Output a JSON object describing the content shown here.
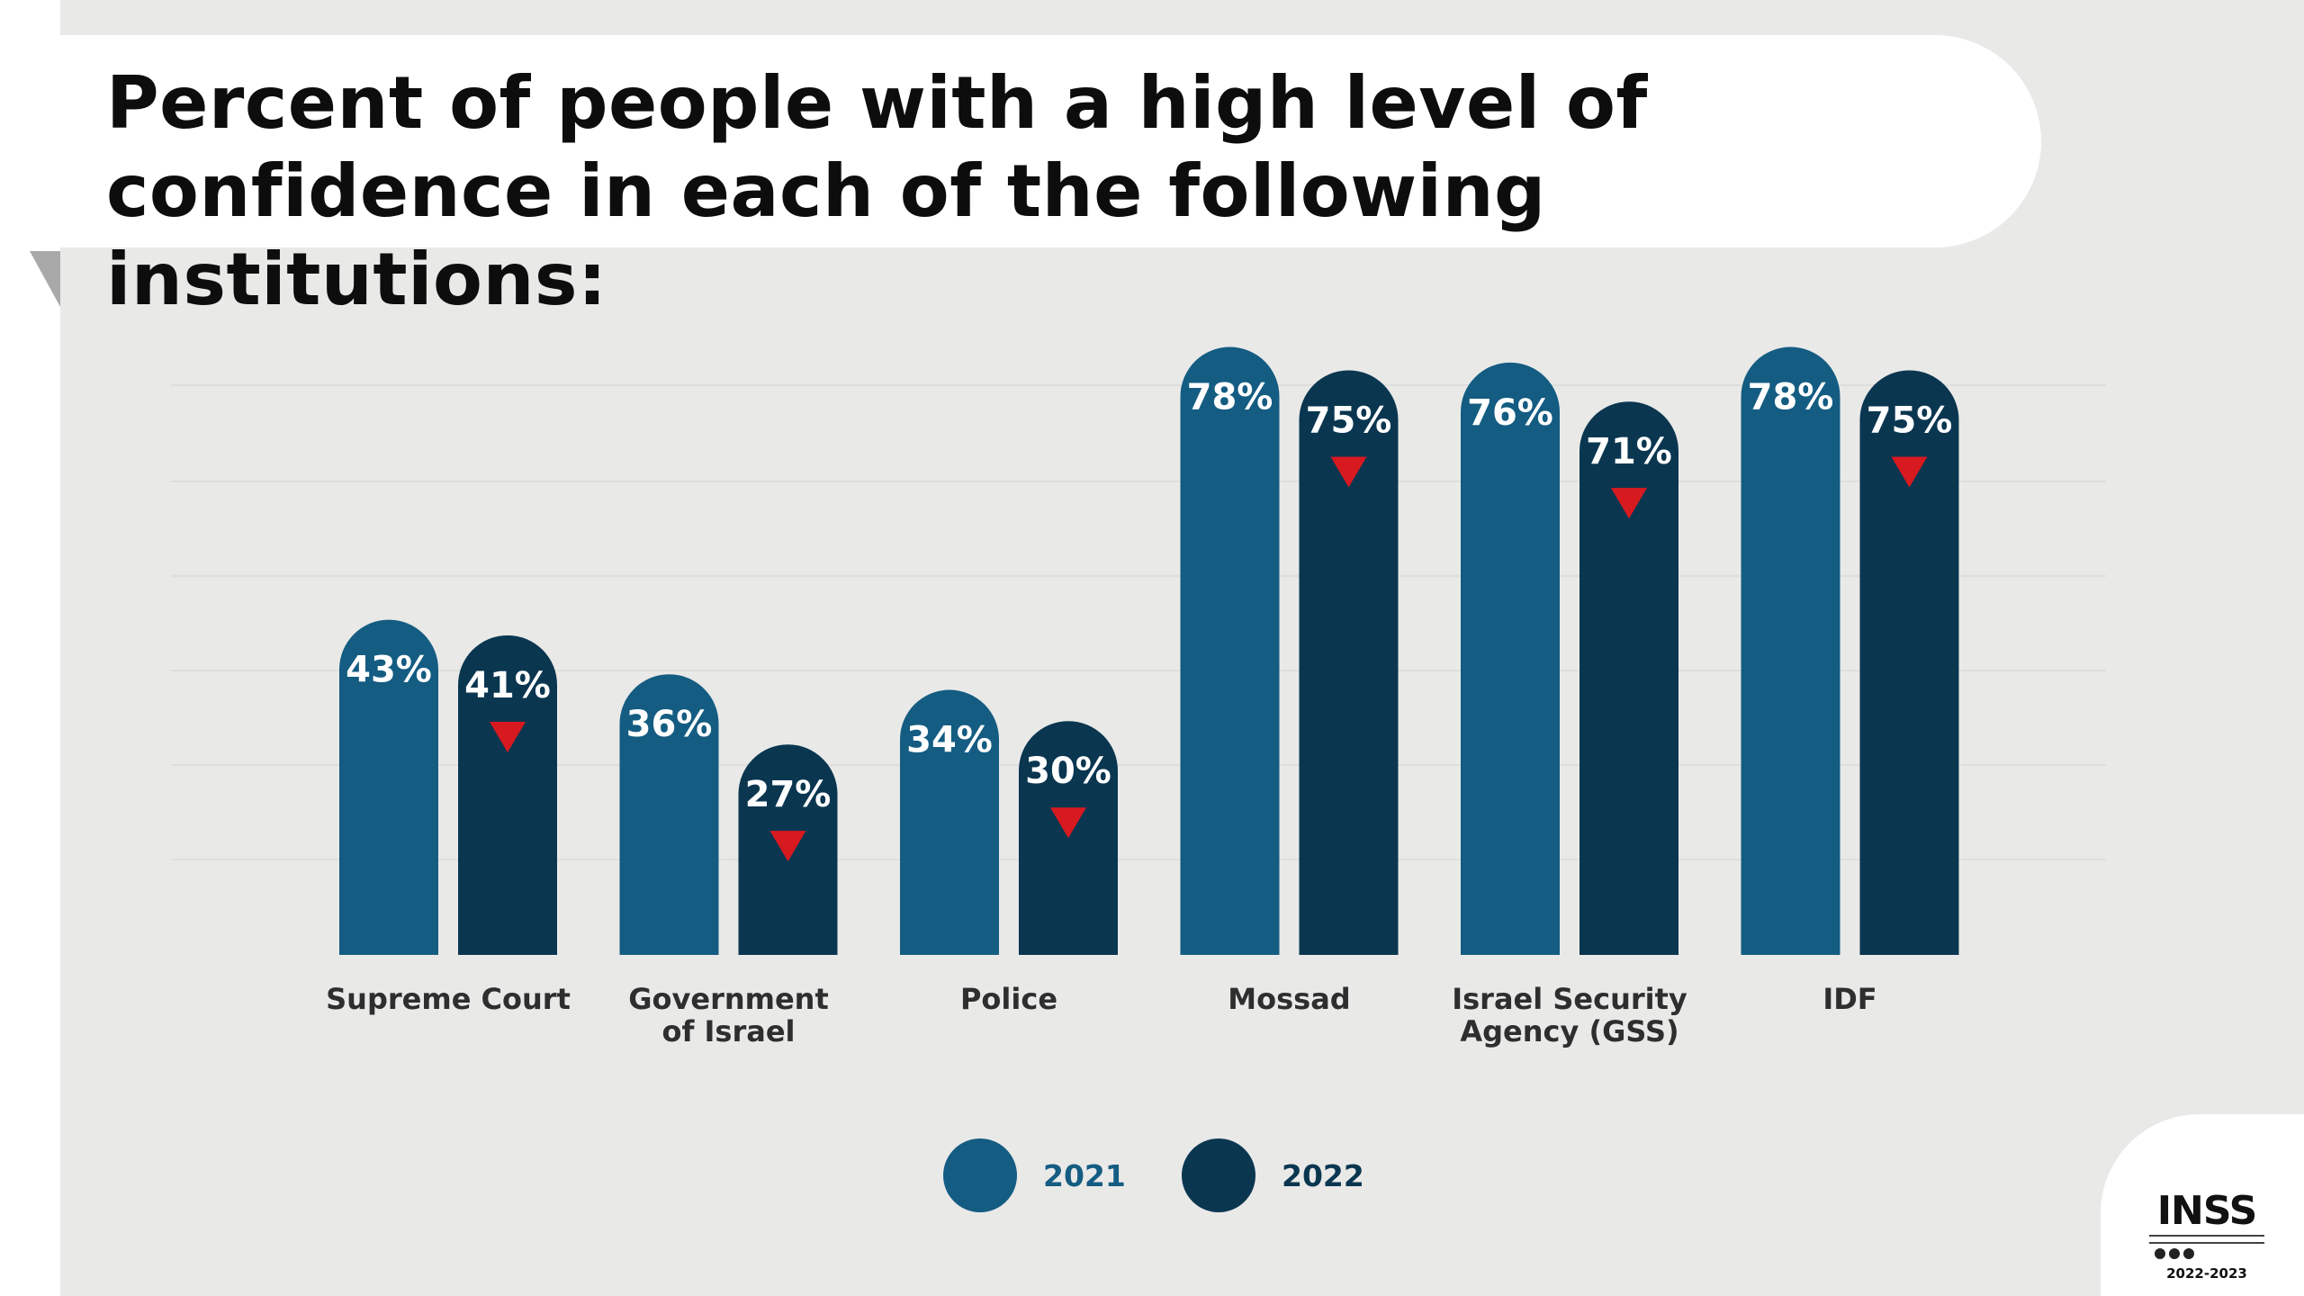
{
  "title": "Percent of people with a high level of confidence in each of the following institutions:",
  "colors": {
    "series_2021": "#145c82",
    "series_2022": "#0a3650",
    "decrease_marker": "#d71920"
  },
  "chart_data": {
    "type": "bar",
    "categories": [
      "Supreme Court",
      "Government of Israel",
      "Police",
      "Mossad",
      "Israel Security Agency (GSS)",
      "IDF"
    ],
    "series": [
      {
        "name": "2021",
        "values": [
          43,
          36,
          34,
          78,
          76,
          78
        ]
      },
      {
        "name": "2022",
        "values": [
          41,
          27,
          30,
          75,
          71,
          75
        ]
      }
    ],
    "value_labels": [
      [
        "43%",
        "36%",
        "34%",
        "78%",
        "76%",
        "78%"
      ],
      [
        "41%",
        "27%",
        "30%",
        "75%",
        "71%",
        "75%"
      ]
    ],
    "decrease_indicator_series": "2022",
    "legend_position": "bottom-center",
    "grid": false,
    "ylim": [
      0,
      80
    ]
  },
  "logo": {
    "name": "INSS",
    "years": "2022-2023"
  }
}
